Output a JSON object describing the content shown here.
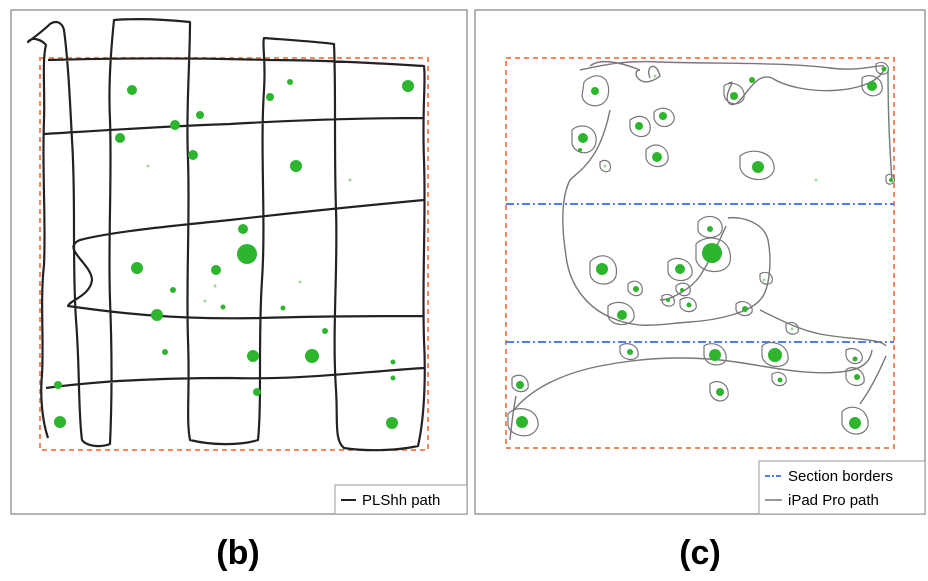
{
  "panels": [
    {
      "caption": "(b)",
      "legend": [
        {
          "label": "PLShh path",
          "color": "#222222",
          "style": "solid"
        }
      ]
    },
    {
      "caption": "(c)",
      "legend": [
        {
          "label": "Section borders",
          "color": "#3a6ee0",
          "style": "dash-dot"
        },
        {
          "label": "iPad Pro path",
          "color": "#777777",
          "style": "solid"
        }
      ]
    }
  ],
  "colors": {
    "area_border": "#f08a5d",
    "dot": "#2db52d",
    "frame": "#9a9a9a"
  }
}
